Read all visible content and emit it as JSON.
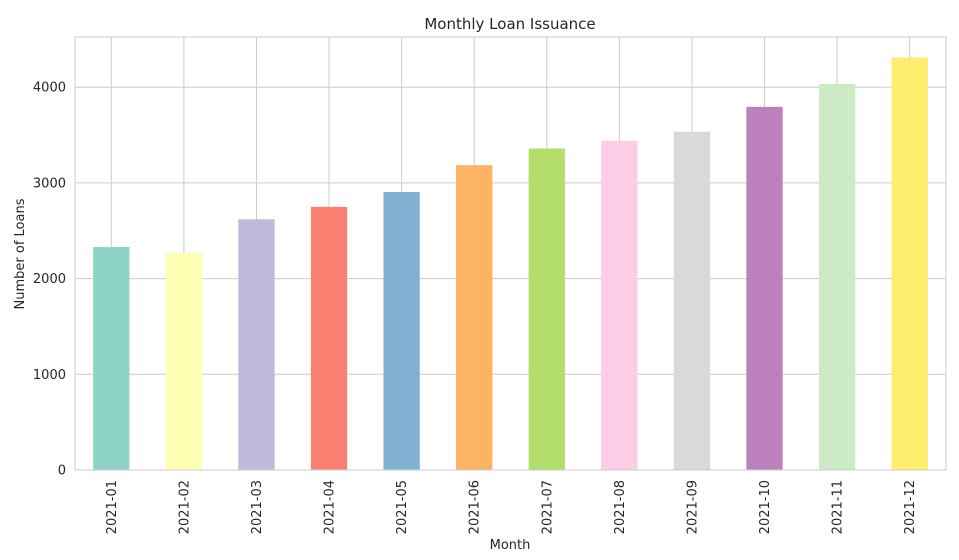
{
  "chart_data": {
    "type": "bar",
    "title": "Monthly Loan Issuance",
    "xlabel": "Month",
    "ylabel": "Number of Loans",
    "categories": [
      "2021-01",
      "2021-02",
      "2021-03",
      "2021-04",
      "2021-05",
      "2021-06",
      "2021-07",
      "2021-08",
      "2021-09",
      "2021-10",
      "2021-11",
      "2021-12"
    ],
    "values": [
      2330,
      2270,
      2620,
      2750,
      2905,
      3185,
      3360,
      3440,
      3535,
      3795,
      4035,
      4310
    ],
    "colors": [
      "#8dd3c7",
      "#ffffb3",
      "#bebada",
      "#fb8072",
      "#80b1d3",
      "#fdb462",
      "#b3de69",
      "#fccde5",
      "#d9d9d9",
      "#bc80bd",
      "#ccebc5",
      "#ffed6f"
    ],
    "yticks": [
      0,
      1000,
      2000,
      3000,
      4000
    ],
    "ytick_labels": [
      "0",
      "1000",
      "2000",
      "3000",
      "4000"
    ],
    "ylim": [
      0,
      4525
    ],
    "grid": true
  }
}
